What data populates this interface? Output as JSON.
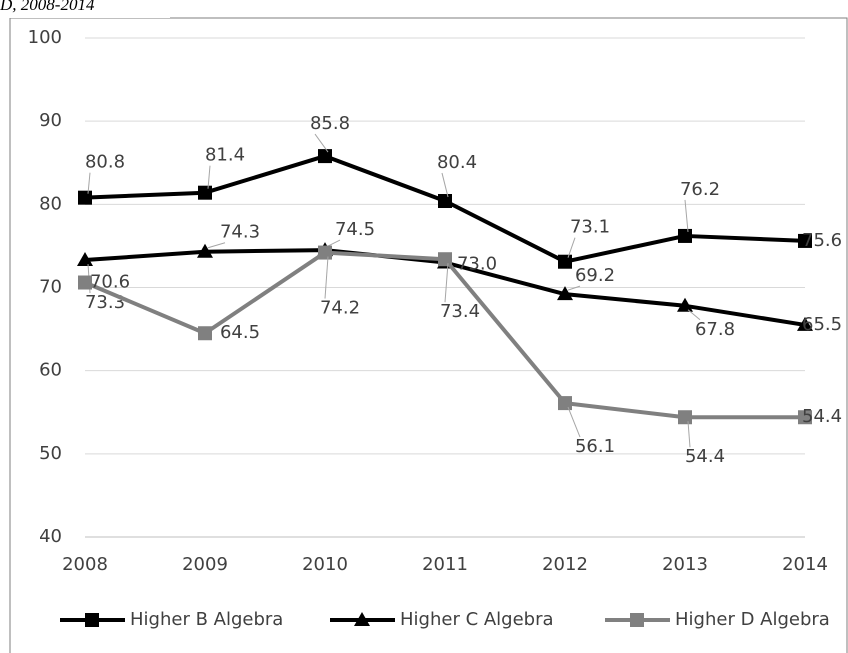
{
  "chart_data": {
    "type": "line",
    "title": "D, 2008-2014",
    "categories": [
      "2008",
      "2009",
      "2010",
      "2011",
      "2012",
      "2013",
      "2014"
    ],
    "series": [
      {
        "name": "Higher B Algebra",
        "color": "#000000",
        "marker": "square",
        "values": [
          80.8,
          81.4,
          85.8,
          80.4,
          73.1,
          76.2,
          75.6
        ],
        "value_labels": [
          "80.8",
          "81.4",
          "85.8",
          "80.4",
          "73.1",
          "76.2",
          "75.6"
        ]
      },
      {
        "name": "Higher C Algebra",
        "color": "#000000",
        "marker": "triangle",
        "values": [
          73.3,
          74.3,
          74.5,
          73.0,
          69.2,
          67.8,
          65.5
        ],
        "value_labels": [
          "73.3",
          "74.3",
          "74.5",
          "73.0",
          "69.2",
          "67.8",
          "65.5"
        ]
      },
      {
        "name": "Higher D Algebra",
        "color": "#808080",
        "marker": "square",
        "values": [
          70.6,
          64.5,
          74.2,
          73.4,
          56.1,
          54.4,
          54.4
        ],
        "value_labels": [
          "70.6",
          "64.5",
          "74.2",
          "73.4",
          "56.1",
          "54.4",
          "54.4"
        ]
      }
    ],
    "ylim": [
      40,
      100
    ],
    "yticks": [
      40,
      50,
      60,
      70,
      80,
      90,
      100
    ],
    "grid": true,
    "legend": "bottom"
  }
}
